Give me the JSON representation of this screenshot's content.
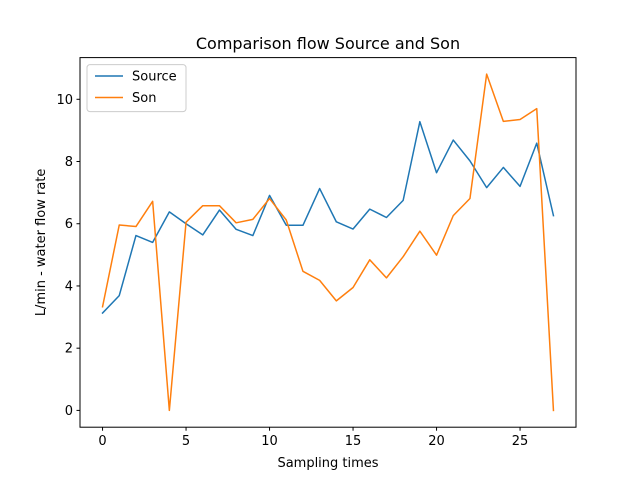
{
  "chart_data": {
    "type": "line",
    "title": "Comparison flow Source and Son",
    "xlabel": "Sampling times",
    "ylabel": "L/min - water flow rate",
    "xlim": [
      -1.35,
      28.35
    ],
    "ylim": [
      -0.54,
      11.34
    ],
    "xticks": [
      0,
      5,
      10,
      15,
      20,
      25
    ],
    "yticks": [
      0,
      2,
      4,
      6,
      8,
      10
    ],
    "grid": false,
    "legend": "top-left",
    "x": [
      0,
      1,
      2,
      3,
      4,
      5,
      6,
      7,
      8,
      9,
      10,
      11,
      12,
      13,
      14,
      15,
      16,
      17,
      18,
      19,
      20,
      21,
      22,
      23,
      24,
      25,
      26,
      27
    ],
    "series": [
      {
        "name": "Source",
        "color": "#1f77b4",
        "values": [
          3.13,
          3.69,
          5.62,
          5.4,
          6.38,
          6.0,
          5.64,
          6.44,
          5.82,
          5.62,
          6.91,
          5.95,
          5.95,
          7.13,
          6.06,
          5.83,
          6.47,
          6.2,
          6.75,
          9.28,
          7.64,
          8.69,
          8.02,
          7.16,
          7.81,
          7.2,
          8.59,
          6.26
        ]
      },
      {
        "name": "Son",
        "color": "#ff7f0e",
        "values": [
          3.33,
          5.96,
          5.91,
          6.72,
          0.0,
          6.05,
          6.58,
          6.58,
          6.03,
          6.14,
          6.81,
          6.12,
          4.47,
          4.18,
          3.52,
          3.95,
          4.84,
          4.26,
          4.94,
          5.76,
          4.99,
          6.26,
          6.81,
          10.81,
          9.29,
          9.35,
          9.7,
          0.0
        ]
      }
    ]
  }
}
